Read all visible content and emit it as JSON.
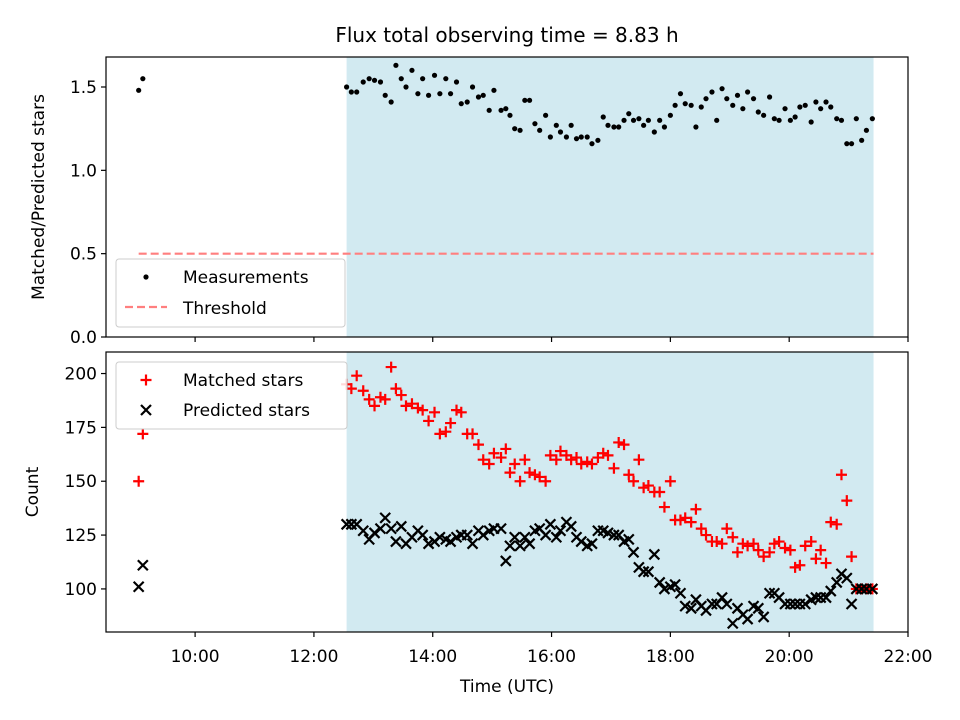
{
  "chart_data": [
    {
      "panel": "top",
      "type": "scatter",
      "title": "Flux total observing time = 8.83 h",
      "ylabel": "Matched/Predicted stars",
      "xlabel": "",
      "ylim": [
        0.0,
        1.68
      ],
      "yticks": [
        0.0,
        0.5,
        1.0,
        1.5
      ],
      "ytick_labels": [
        "0.0",
        "0.5",
        "1.0",
        "1.5"
      ],
      "shaded_interval_hours": [
        12.55,
        21.42
      ],
      "shade_color": "#add8e6",
      "series": [
        {
          "name": "Measurements",
          "marker": "dot",
          "color": "#000000",
          "x": [
            9.05,
            9.12,
            12.55,
            12.63,
            12.72,
            12.83,
            12.93,
            13.02,
            13.12,
            13.2,
            13.3,
            13.38,
            13.47,
            13.55,
            13.65,
            13.75,
            13.83,
            13.93,
            14.03,
            14.12,
            14.22,
            14.3,
            14.4,
            14.48,
            14.58,
            14.67,
            14.77,
            14.85,
            14.95,
            15.03,
            15.15,
            15.23,
            15.3,
            15.38,
            15.47,
            15.55,
            15.63,
            15.72,
            15.8,
            15.9,
            15.98,
            16.08,
            16.15,
            16.25,
            16.33,
            16.42,
            16.5,
            16.6,
            16.68,
            16.78,
            16.87,
            16.95,
            17.05,
            17.13,
            17.22,
            17.3,
            17.38,
            17.47,
            17.55,
            17.63,
            17.73,
            17.82,
            17.9,
            18.0,
            18.08,
            18.17,
            18.25,
            18.35,
            18.43,
            18.52,
            18.6,
            18.7,
            18.78,
            18.87,
            18.95,
            19.05,
            19.13,
            19.22,
            19.3,
            19.4,
            19.48,
            19.57,
            19.67,
            19.75,
            19.83,
            19.93,
            20.02,
            20.1,
            20.18,
            20.27,
            20.37,
            20.45,
            20.53,
            20.62,
            20.7,
            20.8,
            20.88,
            20.97,
            21.05,
            21.13,
            21.22,
            21.3,
            21.4
          ],
          "y": [
            1.48,
            1.55,
            1.5,
            1.47,
            1.47,
            1.53,
            1.55,
            1.54,
            1.53,
            1.45,
            1.41,
            1.63,
            1.55,
            1.5,
            1.6,
            1.46,
            1.55,
            1.45,
            1.57,
            1.46,
            1.55,
            1.46,
            1.53,
            1.4,
            1.41,
            1.5,
            1.44,
            1.45,
            1.36,
            1.48,
            1.36,
            1.37,
            1.33,
            1.25,
            1.24,
            1.42,
            1.42,
            1.28,
            1.24,
            1.33,
            1.2,
            1.27,
            1.23,
            1.2,
            1.27,
            1.19,
            1.2,
            1.2,
            1.16,
            1.18,
            1.32,
            1.27,
            1.26,
            1.26,
            1.3,
            1.34,
            1.3,
            1.31,
            1.27,
            1.3,
            1.23,
            1.3,
            1.26,
            1.33,
            1.39,
            1.46,
            1.4,
            1.39,
            1.26,
            1.38,
            1.43,
            1.47,
            1.3,
            1.49,
            1.43,
            1.39,
            1.45,
            1.37,
            1.47,
            1.43,
            1.35,
            1.33,
            1.44,
            1.31,
            1.3,
            1.37,
            1.3,
            1.32,
            1.38,
            1.39,
            1.29,
            1.41,
            1.37,
            1.41,
            1.38,
            1.31,
            1.3,
            1.16,
            1.16,
            1.31,
            1.18,
            1.24,
            1.31
          ]
        },
        {
          "name": "Threshold",
          "marker": "dashed-line",
          "color": "#ff7f7f",
          "x": [
            9.05,
            21.42
          ],
          "y": [
            0.5,
            0.5
          ]
        }
      ],
      "legend": [
        "Measurements",
        "Threshold"
      ],
      "legend_location": "lower-left"
    },
    {
      "panel": "bottom",
      "type": "scatter",
      "title": "",
      "ylabel": "Count",
      "xlabel": "Time (UTC)",
      "ylim": [
        80,
        210
      ],
      "yticks": [
        100,
        125,
        150,
        175,
        200
      ],
      "ytick_labels": [
        "100",
        "125",
        "150",
        "175",
        "200"
      ],
      "xlim_hours": [
        8.5,
        22.0
      ],
      "xticks_hours": [
        10,
        12,
        14,
        16,
        18,
        20,
        22
      ],
      "xtick_labels": [
        "10:00",
        "12:00",
        "14:00",
        "16:00",
        "18:00",
        "20:00",
        "22:00"
      ],
      "shaded_interval_hours": [
        12.55,
        21.42
      ],
      "shade_color": "#add8e6",
      "series": [
        {
          "name": "Matched stars",
          "marker": "plus",
          "color": "#ff0000",
          "x": [
            9.05,
            9.12,
            12.55,
            12.63,
            12.72,
            12.83,
            12.93,
            13.02,
            13.12,
            13.2,
            13.3,
            13.38,
            13.47,
            13.55,
            13.65,
            13.75,
            13.83,
            13.93,
            14.03,
            14.12,
            14.22,
            14.3,
            14.4,
            14.48,
            14.58,
            14.67,
            14.77,
            14.85,
            14.95,
            15.03,
            15.15,
            15.23,
            15.3,
            15.38,
            15.47,
            15.55,
            15.63,
            15.72,
            15.8,
            15.9,
            15.98,
            16.08,
            16.15,
            16.25,
            16.33,
            16.42,
            16.5,
            16.6,
            16.68,
            16.78,
            16.87,
            16.95,
            17.05,
            17.13,
            17.22,
            17.3,
            17.38,
            17.47,
            17.55,
            17.63,
            17.73,
            17.82,
            17.9,
            18.0,
            18.08,
            18.17,
            18.25,
            18.35,
            18.43,
            18.52,
            18.6,
            18.7,
            18.78,
            18.87,
            18.95,
            19.05,
            19.13,
            19.22,
            19.3,
            19.4,
            19.48,
            19.57,
            19.67,
            19.75,
            19.83,
            19.93,
            20.02,
            20.1,
            20.18,
            20.27,
            20.37,
            20.45,
            20.53,
            20.62,
            20.7,
            20.8,
            20.88,
            20.97,
            21.05,
            21.13,
            21.22,
            21.3,
            21.4
          ],
          "y": [
            150,
            172,
            195,
            193,
            199,
            192,
            188,
            185,
            189,
            188,
            203,
            193,
            190,
            185,
            186,
            184,
            183,
            178,
            182,
            172,
            173,
            177,
            183,
            182,
            172,
            172,
            167,
            160,
            158,
            163,
            161,
            165,
            154,
            158,
            150,
            160,
            154,
            153,
            152,
            150,
            162,
            160,
            164,
            162,
            160,
            161,
            158,
            159,
            158,
            161,
            163,
            162,
            156,
            168,
            167,
            153,
            150,
            160,
            147,
            148,
            145,
            145,
            138,
            150,
            132,
            132,
            133,
            131,
            137,
            128,
            125,
            122,
            122,
            121,
            128,
            124,
            117,
            121,
            120,
            121,
            118,
            115,
            117,
            121,
            122,
            119,
            118,
            110,
            111,
            120,
            122,
            114,
            118,
            112,
            131,
            130,
            153,
            141,
            115,
            100,
            100,
            100,
            100
          ]
        },
        {
          "name": "Predicted stars",
          "marker": "x",
          "color": "#000000",
          "x": [
            9.05,
            9.12,
            12.55,
            12.63,
            12.72,
            12.83,
            12.93,
            13.02,
            13.12,
            13.2,
            13.3,
            13.38,
            13.47,
            13.55,
            13.65,
            13.75,
            13.83,
            13.93,
            14.03,
            14.12,
            14.22,
            14.3,
            14.4,
            14.48,
            14.58,
            14.67,
            14.77,
            14.85,
            14.95,
            15.03,
            15.15,
            15.23,
            15.3,
            15.38,
            15.47,
            15.55,
            15.63,
            15.72,
            15.8,
            15.9,
            15.98,
            16.08,
            16.15,
            16.25,
            16.33,
            16.42,
            16.5,
            16.6,
            16.68,
            16.78,
            16.87,
            16.95,
            17.05,
            17.13,
            17.22,
            17.3,
            17.38,
            17.47,
            17.55,
            17.63,
            17.73,
            17.82,
            17.9,
            18.0,
            18.08,
            18.17,
            18.25,
            18.35,
            18.43,
            18.52,
            18.6,
            18.7,
            18.78,
            18.87,
            18.95,
            19.05,
            19.13,
            19.22,
            19.3,
            19.4,
            19.48,
            19.57,
            19.67,
            19.75,
            19.83,
            19.93,
            20.02,
            20.1,
            20.18,
            20.27,
            20.37,
            20.45,
            20.53,
            20.62,
            20.7,
            20.8,
            20.88,
            20.97,
            21.05,
            21.13,
            21.22,
            21.3,
            21.4
          ],
          "y": [
            101,
            111,
            130,
            130,
            130,
            127,
            123,
            126,
            128,
            133,
            128,
            122,
            129,
            121,
            124,
            127,
            125,
            121,
            122,
            124,
            123,
            122,
            124,
            125,
            125,
            121,
            127,
            125,
            127,
            128,
            128,
            113,
            120,
            124,
            120,
            124,
            121,
            127,
            128,
            125,
            130,
            124,
            127,
            131,
            129,
            124,
            122,
            120,
            121,
            127,
            127,
            126,
            125,
            125,
            122,
            123,
            117,
            110,
            108,
            108,
            116,
            103,
            100,
            101,
            102,
            98,
            92,
            91,
            95,
            92,
            90,
            93,
            93,
            96,
            93,
            84,
            91,
            88,
            86,
            92,
            91,
            87,
            98,
            98,
            96,
            93,
            93,
            93,
            93,
            93,
            95,
            96,
            96,
            96,
            99,
            103,
            107,
            105,
            93,
            100,
            100,
            100,
            100
          ]
        }
      ],
      "legend": [
        "Matched stars",
        "Predicted stars"
      ],
      "legend_location": "upper-left"
    }
  ]
}
